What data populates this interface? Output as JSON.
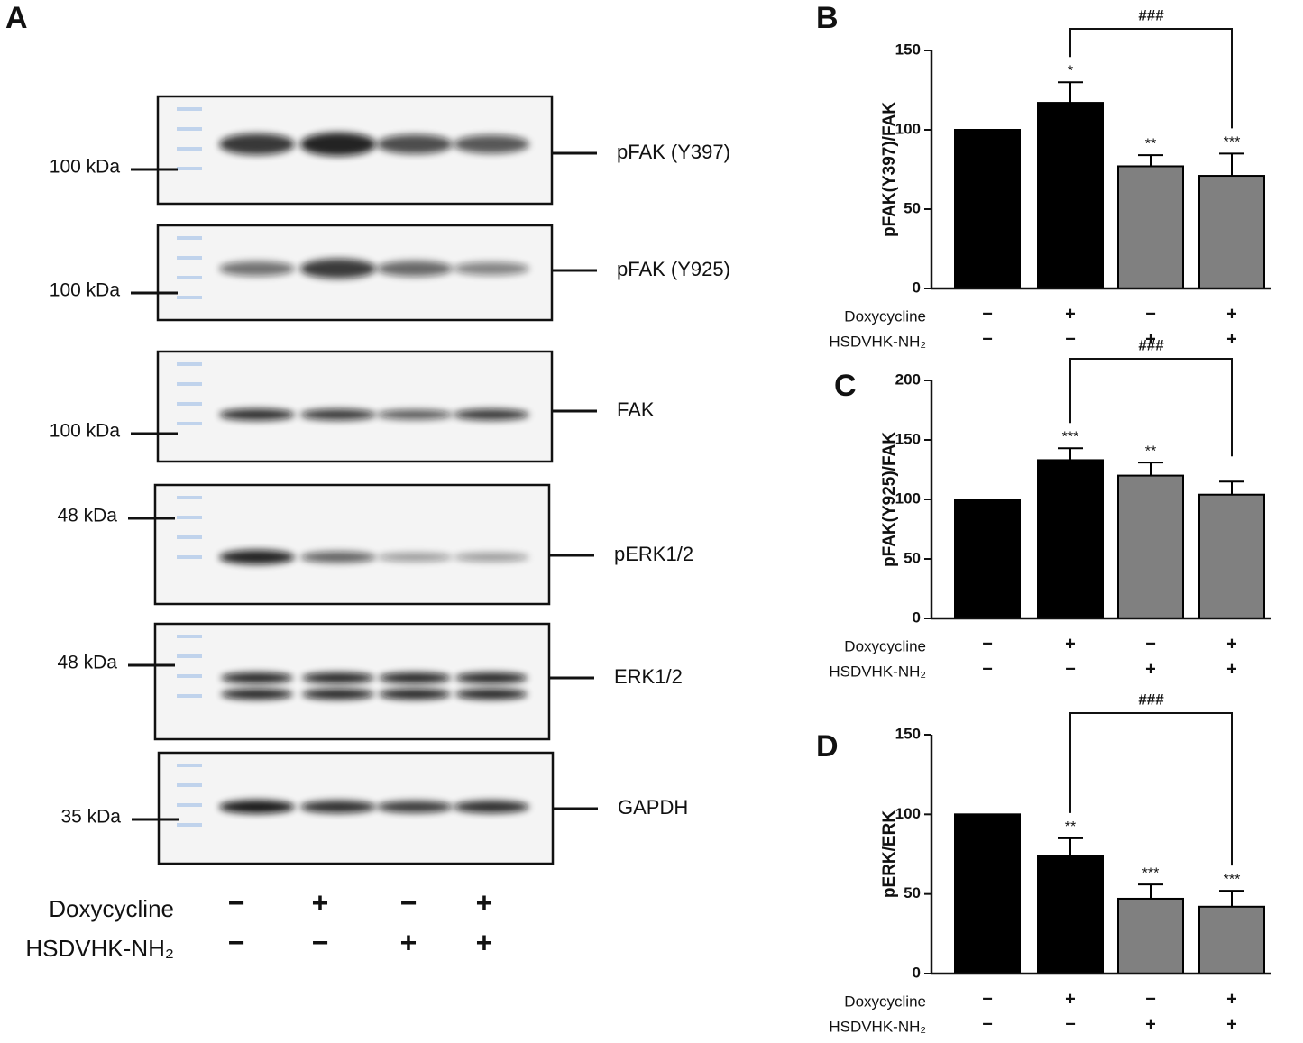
{
  "panel_a": {
    "label": "A",
    "blots": [
      {
        "marker": "100 kDa",
        "protein": "pFAK (Y397)"
      },
      {
        "marker": "100 kDa",
        "protein": "pFAK (Y925)"
      },
      {
        "marker": "100 kDa",
        "protein": "FAK"
      },
      {
        "marker": "48 kDa",
        "protein": "pERK1/2"
      },
      {
        "marker": "48 kDa",
        "protein": "ERK1/2"
      },
      {
        "marker": "35 kDa",
        "protein": "GAPDH"
      }
    ],
    "treatments": [
      {
        "name": "Doxycycline",
        "signs": [
          "−",
          "+",
          "−",
          "+"
        ]
      },
      {
        "name": "HSDVHK-NH₂",
        "signs": [
          "−",
          "−",
          "+",
          "+"
        ]
      }
    ]
  },
  "chart_data": [
    {
      "type": "bar",
      "panel": "B",
      "ylabel": "pFAK(Y397)/FAK",
      "ylim": [
        0,
        150
      ],
      "yticks": [
        0,
        50,
        100,
        150
      ],
      "values": [
        100,
        117,
        77,
        71
      ],
      "errors": [
        0,
        13,
        7,
        14
      ],
      "colors": [
        "#000000",
        "#000000",
        "#808080",
        "#808080"
      ],
      "significance": [
        null,
        "*",
        "**",
        "***"
      ],
      "bracket": {
        "from": 1,
        "to": 3,
        "label": "###"
      },
      "treatments": [
        {
          "name": "Doxycycline",
          "signs": [
            "−",
            "+",
            "−",
            "+"
          ]
        },
        {
          "name": "HSDVHK-NH₂",
          "signs": [
            "−",
            "−",
            "+",
            "+"
          ]
        }
      ]
    },
    {
      "type": "bar",
      "panel": "C",
      "ylabel": "pFAK(Y925)/FAK",
      "ylim": [
        0,
        200
      ],
      "yticks": [
        0,
        50,
        100,
        150,
        200
      ],
      "values": [
        100,
        133,
        120,
        104
      ],
      "errors": [
        0,
        10,
        11,
        11
      ],
      "colors": [
        "#000000",
        "#000000",
        "#808080",
        "#808080"
      ],
      "significance": [
        null,
        "***",
        "**",
        null
      ],
      "bracket": {
        "from": 1,
        "to": 3,
        "label": "###"
      },
      "treatments": [
        {
          "name": "Doxycycline",
          "signs": [
            "−",
            "+",
            "−",
            "+"
          ]
        },
        {
          "name": "HSDVHK-NH₂",
          "signs": [
            "−",
            "−",
            "+",
            "+"
          ]
        }
      ]
    },
    {
      "type": "bar",
      "panel": "D",
      "ylabel": "pERK/ERK",
      "ylim": [
        0,
        150
      ],
      "yticks": [
        0,
        50,
        100,
        150
      ],
      "values": [
        100,
        74,
        47,
        42
      ],
      "errors": [
        0,
        11,
        9,
        10
      ],
      "colors": [
        "#000000",
        "#000000",
        "#808080",
        "#808080"
      ],
      "significance": [
        null,
        "**",
        "***",
        "***"
      ],
      "bracket": {
        "from": 1,
        "to": 3,
        "label": "###"
      },
      "treatments": [
        {
          "name": "Doxycycline",
          "signs": [
            "−",
            "+",
            "−",
            "+"
          ]
        },
        {
          "name": "HSDVHK-NH₂",
          "signs": [
            "−",
            "−",
            "+",
            "+"
          ]
        }
      ]
    }
  ]
}
